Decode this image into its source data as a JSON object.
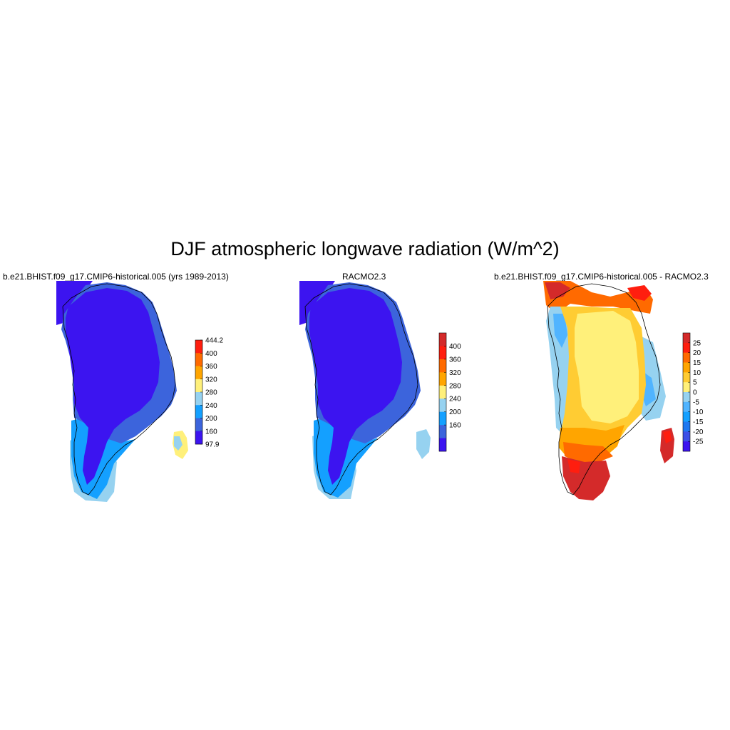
{
  "title": "DJF atmospheric longwave radiation (W/m^2)",
  "panels": [
    {
      "title": "b.e21.BHIST.f09_g17.CMIP6-historical.005 (yrs 1989-2013)",
      "colorbar": {
        "labels": [
          "444.2",
          "400",
          "360",
          "320",
          "280",
          "240",
          "200",
          "160",
          "97.9"
        ],
        "colors": [
          "#d42a2a",
          "#ff1e0f",
          "#ff6a00",
          "#ffa500",
          "#fff07a",
          "#96d2f0",
          "#14a0ff",
          "#3c64dc",
          "#3c14f0"
        ]
      }
    },
    {
      "title": "RACMO2.3",
      "colorbar": {
        "labels": [
          "400",
          "360",
          "320",
          "280",
          "240",
          "200",
          "160"
        ],
        "colors": [
          "#d42a2a",
          "#ff1e0f",
          "#ff6a00",
          "#ffa500",
          "#fff07a",
          "#96d2f0",
          "#14a0ff",
          "#3c64dc",
          "#3c14f0"
        ]
      }
    },
    {
      "title": "b.e21.BHIST.f09_g17.CMIP6-historical.005 - RACMO2.3",
      "colorbar": {
        "labels": [
          "25",
          "20",
          "15",
          "10",
          "5",
          "0",
          "-5",
          "-10",
          "-15",
          "-20",
          "-25"
        ],
        "colors": [
          "#d42a2a",
          "#ff1e0f",
          "#ff6a00",
          "#ffa500",
          "#ffcc33",
          "#fff07a",
          "#96d2f0",
          "#50b4ff",
          "#14a0ff",
          "#1e78f0",
          "#3c50e6",
          "#3c14f0"
        ]
      }
    }
  ]
}
